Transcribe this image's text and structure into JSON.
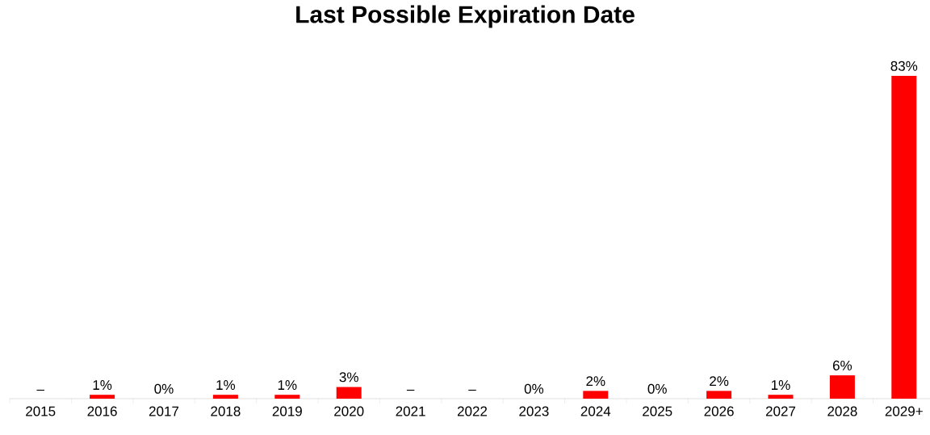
{
  "chart_data": {
    "type": "bar",
    "title": "Last Possible Expiration Date",
    "categories": [
      "2015",
      "2016",
      "2017",
      "2018",
      "2019",
      "2020",
      "2021",
      "2022",
      "2023",
      "2024",
      "2025",
      "2026",
      "2027",
      "2028",
      "2029+"
    ],
    "values": [
      null,
      1,
      0,
      1,
      1,
      3,
      null,
      null,
      0,
      2,
      0,
      2,
      1,
      6,
      83
    ],
    "value_labels": [
      "–",
      "1%",
      "0%",
      "1%",
      "1%",
      "3%",
      "–",
      "–",
      "0%",
      "2%",
      "0%",
      "2%",
      "1%",
      "6%",
      "83%"
    ],
    "color": "#ff0000"
  }
}
